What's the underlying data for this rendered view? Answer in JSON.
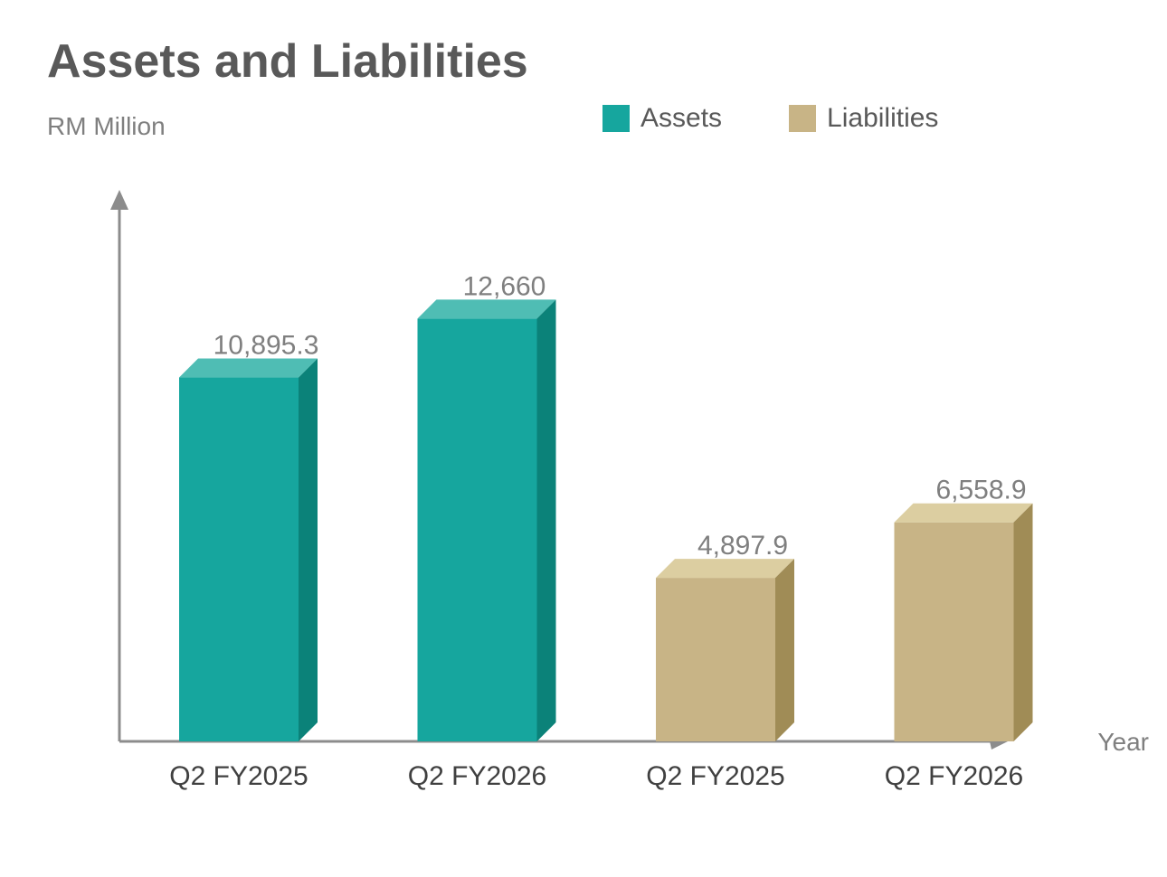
{
  "chart_data": {
    "type": "bar",
    "title": "Assets and Liabilities",
    "ylabel": "RM Million",
    "xlabel": "Year",
    "categories": [
      "Q2 FY2025",
      "Q2 FY2026",
      "Q2 FY2025",
      "Q2 FY2026"
    ],
    "series": [
      {
        "name": "Assets",
        "color": "#16a69e",
        "values": [
          10895.3,
          12660,
          null,
          null
        ],
        "labels": [
          "10,895.3",
          "12,660",
          null,
          null
        ]
      },
      {
        "name": "Liabilities",
        "color": "#c8b486",
        "values": [
          null,
          null,
          4897.9,
          6558.9
        ],
        "labels": [
          null,
          null,
          "4,897.9",
          "6,558.9"
        ]
      }
    ],
    "ylim": [
      0,
      16000
    ],
    "grid": false,
    "legend_position": "top-right"
  }
}
